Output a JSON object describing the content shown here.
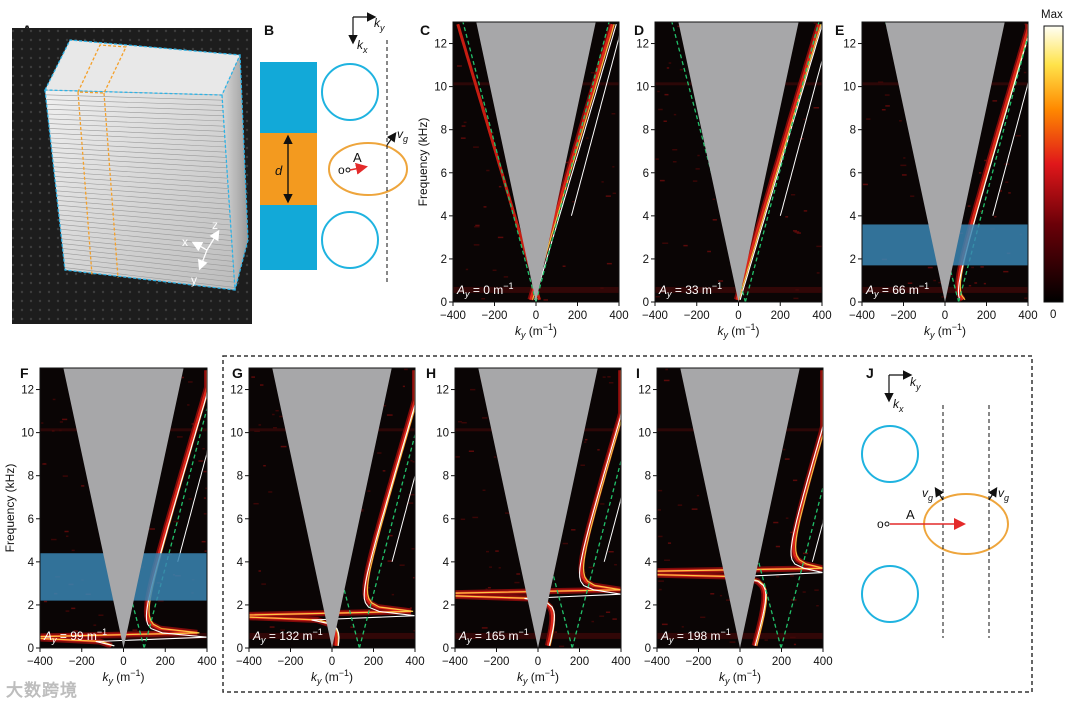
{
  "figure": {
    "panel_labels": [
      "A",
      "B",
      "C",
      "D",
      "E",
      "F",
      "G",
      "H",
      "I",
      "J"
    ],
    "colorbar": {
      "max_label": "Max",
      "min_label": "0"
    },
    "panel_b": {
      "d_label": "d",
      "A_label": "A",
      "o_label": "o",
      "vg_label": "v",
      "vg_sub": "g",
      "ky_label": "k",
      "ky_sub": "y",
      "kx_label": "k",
      "kx_sub": "x"
    },
    "panel_a": {
      "axis_x": "x",
      "axis_y": "y",
      "axis_z": "z"
    },
    "panel_j": {
      "A_label": "A",
      "o_label": "o",
      "vg_label": "v",
      "vg_sub": "g",
      "ky_label": "k",
      "ky_sub": "y",
      "kx_label": "k",
      "kx_sub": "x"
    },
    "watermark": "大数跨境"
  },
  "chart_data": [
    {
      "type": "heatmap",
      "panel": "C",
      "annotation": "A",
      "annotation_sub": "y",
      "annotation_value": " = 0 m",
      "annotation_exp": "−1",
      "xlabel": "k",
      "xlabel_sub": "y",
      "xlabel_unit": " (m",
      "xlabel_exp": "−1",
      "ylabel": "Frequency (kHz)",
      "xticks": [
        "−400",
        "−200",
        "0",
        "200",
        "400"
      ],
      "yticks": [
        "0",
        "2",
        "4",
        "6",
        "8",
        "10",
        "12"
      ],
      "xlim": [
        -400,
        400
      ],
      "ylim": [
        0,
        13
      ],
      "Ay": 0,
      "highlight_band": null
    },
    {
      "type": "heatmap",
      "panel": "D",
      "annotation": "A",
      "annotation_sub": "y",
      "annotation_value": " = 33 m",
      "annotation_exp": "−1",
      "xlabel": "k",
      "xlabel_sub": "y",
      "xlabel_unit": " (m",
      "xlabel_exp": "−1",
      "ylabel": "",
      "xticks": [
        "−400",
        "−200",
        "0",
        "200",
        "400"
      ],
      "yticks": [
        "0",
        "2",
        "4",
        "6",
        "8",
        "10",
        "12"
      ],
      "xlim": [
        -400,
        400
      ],
      "ylim": [
        0,
        13
      ],
      "Ay": 33,
      "highlight_band": null
    },
    {
      "type": "heatmap",
      "panel": "E",
      "annotation": "A",
      "annotation_sub": "y",
      "annotation_value": " = 66 m",
      "annotation_exp": "−1",
      "xlabel": "k",
      "xlabel_sub": "y",
      "xlabel_unit": " (m",
      "xlabel_exp": "−1",
      "ylabel": "",
      "xticks": [
        "−400",
        "−200",
        "0",
        "200",
        "400"
      ],
      "yticks": [
        "0",
        "2",
        "4",
        "6",
        "8",
        "10",
        "12"
      ],
      "xlim": [
        -400,
        400
      ],
      "ylim": [
        0,
        13
      ],
      "Ay": 66,
      "highlight_band": [
        1.7,
        3.6
      ]
    },
    {
      "type": "heatmap",
      "panel": "F",
      "annotation": "A",
      "annotation_sub": "y",
      "annotation_value": " = 99 m",
      "annotation_exp": "−1",
      "xlabel": "k",
      "xlabel_sub": "y",
      "xlabel_unit": " (m",
      "xlabel_exp": "−1",
      "ylabel": "Frequency (kHz)",
      "xticks": [
        "−400",
        "−200",
        "0",
        "200",
        "400"
      ],
      "yticks": [
        "0",
        "2",
        "4",
        "6",
        "8",
        "10",
        "12"
      ],
      "xlim": [
        -400,
        400
      ],
      "ylim": [
        0,
        13
      ],
      "Ay": 99,
      "highlight_band": [
        2.2,
        4.4
      ]
    },
    {
      "type": "heatmap",
      "panel": "G",
      "annotation": "A",
      "annotation_sub": "y",
      "annotation_value": " = 132 m",
      "annotation_exp": "−1",
      "xlabel": "k",
      "xlabel_sub": "y",
      "xlabel_unit": " (m",
      "xlabel_exp": "−1",
      "ylabel": "",
      "xticks": [
        "−400",
        "−200",
        "0",
        "200",
        "400"
      ],
      "yticks": [
        "0",
        "2",
        "4",
        "6",
        "8",
        "10",
        "12"
      ],
      "xlim": [
        -400,
        400
      ],
      "ylim": [
        0,
        13
      ],
      "Ay": 132,
      "highlight_band": null
    },
    {
      "type": "heatmap",
      "panel": "H",
      "annotation": "A",
      "annotation_sub": "y",
      "annotation_value": " = 165 m",
      "annotation_exp": "−1",
      "xlabel": "k",
      "xlabel_sub": "y",
      "xlabel_unit": " (m",
      "xlabel_exp": "−1",
      "ylabel": "",
      "xticks": [
        "−400",
        "−200",
        "0",
        "200",
        "400"
      ],
      "yticks": [
        "0",
        "2",
        "4",
        "6",
        "8",
        "10",
        "12"
      ],
      "xlim": [
        -400,
        400
      ],
      "ylim": [
        0,
        13
      ],
      "Ay": 165,
      "highlight_band": null
    },
    {
      "type": "heatmap",
      "panel": "I",
      "annotation": "A",
      "annotation_sub": "y",
      "annotation_value": " = 198 m",
      "annotation_exp": "−1",
      "xlabel": "k",
      "xlabel_sub": "y",
      "xlabel_unit": " (m",
      "xlabel_exp": "−1",
      "ylabel": "",
      "xticks": [
        "−400",
        "−200",
        "0",
        "200",
        "400"
      ],
      "yticks": [
        "0",
        "2",
        "4",
        "6",
        "8",
        "10",
        "12"
      ],
      "xlim": [
        -400,
        400
      ],
      "ylim": [
        0,
        13
      ],
      "Ay": 198,
      "highlight_band": null
    }
  ],
  "colors": {
    "cyan": "#12a9d8",
    "orange": "#f39a1f",
    "light_cone": "#a7a7a9",
    "plot_bg": "#0a0505",
    "band": "#3a86b4",
    "circle": "#1fb3e0",
    "ellipse": "#eea53c",
    "arrow": "#e42a2a",
    "fit_line": "#ffffff",
    "light_line": "#22c06a"
  }
}
